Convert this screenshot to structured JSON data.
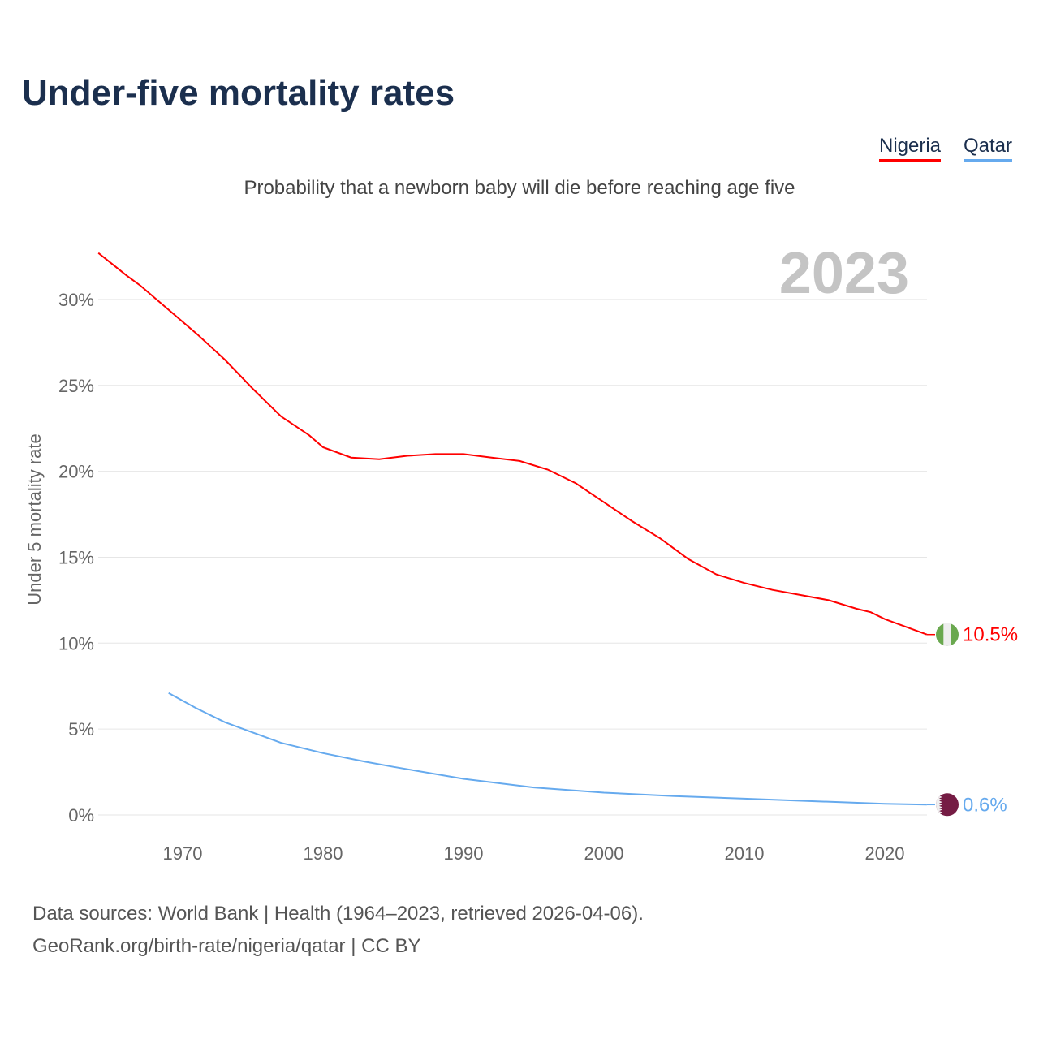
{
  "title": "Under-five mortality rates",
  "subtitle": "Probability that a newborn baby will die before reaching age five",
  "legend": [
    {
      "label": "Nigeria",
      "color": "#ff0000"
    },
    {
      "label": "Qatar",
      "color": "#66aaee"
    }
  ],
  "source_line1": "Data sources: World Bank | Health (1964–2023, retrieved 2026-04-06).",
  "source_line2": "GeoRank.org/birth-rate/nigeria/qatar | CC BY",
  "chart_data": {
    "type": "line",
    "title": "Under-five mortality rates",
    "ylabel": "Under 5 mortality rate",
    "xlabel": "",
    "year_label": "2023",
    "xlim": [
      1964,
      2023
    ],
    "ylim": [
      0,
      30
    ],
    "x_ticks": [
      1970,
      1980,
      1990,
      2000,
      2010,
      2020
    ],
    "y_ticks": [
      "0%",
      "5%",
      "10%",
      "15%",
      "20%",
      "25%",
      "30%"
    ],
    "y_tick_values": [
      0,
      5,
      10,
      15,
      20,
      25,
      30
    ],
    "series": [
      {
        "name": "Nigeria",
        "color": "#ff0000",
        "end_label": "10.5%",
        "flag": "nigeria-flag",
        "x": [
          1964,
          1966,
          1967,
          1969,
          1971,
          1973,
          1975,
          1977,
          1979,
          1980,
          1982,
          1984,
          1986,
          1988,
          1990,
          1992,
          1994,
          1996,
          1998,
          2000,
          2002,
          2004,
          2006,
          2008,
          2010,
          2012,
          2014,
          2016,
          2018,
          2019,
          2020,
          2023
        ],
        "y": [
          32.7,
          31.4,
          30.8,
          29.4,
          28.0,
          26.5,
          24.8,
          23.2,
          22.1,
          21.4,
          20.8,
          20.7,
          20.9,
          21.0,
          21.0,
          20.8,
          20.6,
          20.1,
          19.3,
          18.2,
          17.1,
          16.1,
          14.9,
          14.0,
          13.5,
          13.1,
          12.8,
          12.5,
          12.0,
          11.8,
          11.4,
          10.5
        ]
      },
      {
        "name": "Qatar",
        "color": "#66aaee",
        "end_label": "0.6%",
        "flag": "qatar-flag",
        "x": [
          1969,
          1971,
          1973,
          1975,
          1977,
          1980,
          1983,
          1985,
          1990,
          1995,
          2000,
          2005,
          2010,
          2015,
          2020,
          2023
        ],
        "y": [
          7.1,
          6.2,
          5.4,
          4.8,
          4.2,
          3.6,
          3.1,
          2.8,
          2.1,
          1.6,
          1.3,
          1.1,
          0.95,
          0.8,
          0.65,
          0.6
        ]
      }
    ]
  }
}
